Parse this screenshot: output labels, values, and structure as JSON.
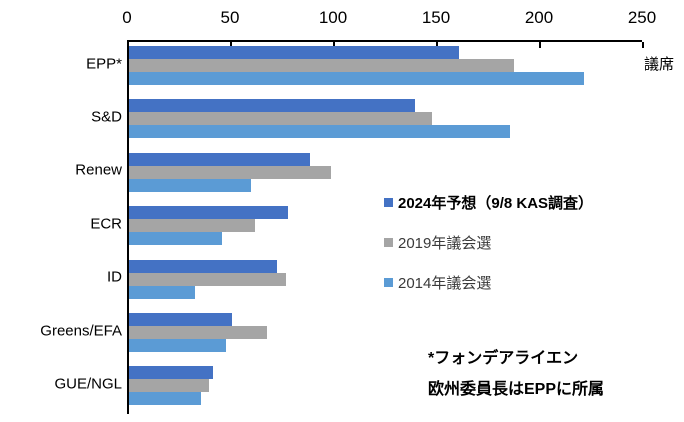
{
  "chart_data": {
    "type": "bar",
    "orientation": "horizontal",
    "title": "",
    "value_axis": {
      "label": "議席",
      "position": "top",
      "min": 0,
      "max": 250,
      "ticks": [
        0,
        50,
        100,
        150,
        200,
        250
      ]
    },
    "grid": false,
    "categories": [
      "EPP*",
      "S&D",
      "Renew",
      "ECR",
      "ID",
      "Greens/EFA",
      "GUE/NGL"
    ],
    "series": [
      {
        "name": "2024年予想（9/8 KAS調査）",
        "color": "#4472C4",
        "values": [
          160,
          139,
          88,
          77,
          72,
          50,
          41
        ]
      },
      {
        "name": "2019年議会選",
        "color": "#A5A5A5",
        "values": [
          187,
          147,
          98,
          61,
          76,
          67,
          39
        ]
      },
      {
        "name": "2014年議会選",
        "color": "#5B9BD5",
        "values": [
          221,
          185,
          59,
          45,
          32,
          47,
          35
        ]
      }
    ],
    "legend_position": "center-right",
    "footnote_line1": "*フォンデアライエン",
    "footnote_line2": "欧州委員長はEPPに所属"
  }
}
